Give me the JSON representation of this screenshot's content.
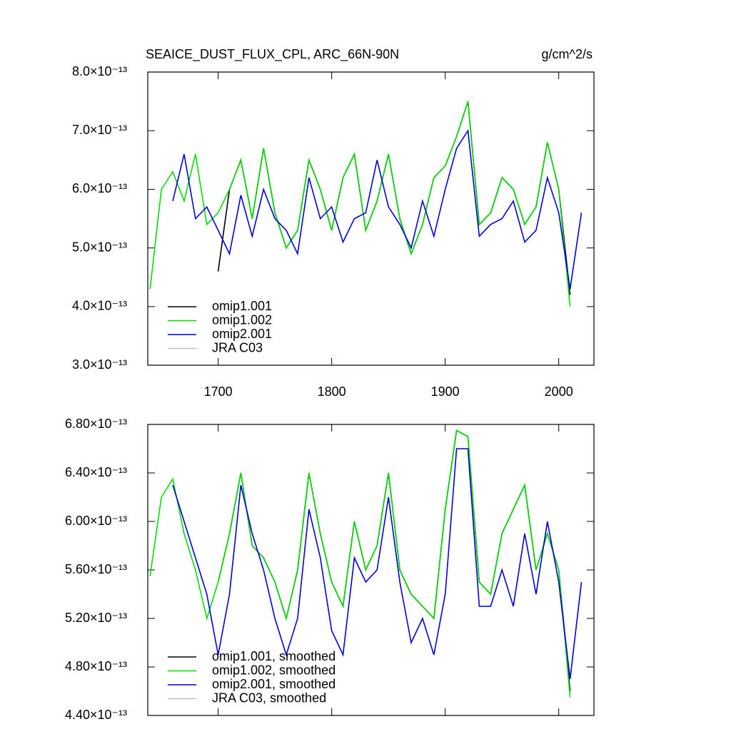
{
  "chart_data": [
    {
      "type": "line",
      "title": "SEAICE_DUST_FLUX_CPL, ARC_66N-90N",
      "units": "g/cm^2/s",
      "x": [
        1640,
        1650,
        1660,
        1670,
        1680,
        1690,
        1700,
        1710,
        1720,
        1730,
        1740,
        1750,
        1760,
        1770,
        1780,
        1790,
        1800,
        1810,
        1820,
        1830,
        1840,
        1850,
        1860,
        1870,
        1880,
        1890,
        1900,
        1910,
        1920,
        1930,
        1940,
        1950,
        1960,
        1970,
        1980,
        1990,
        2000,
        2010,
        2020
      ],
      "xlim": [
        1638,
        2031
      ],
      "xticks": [
        1700,
        1800,
        1900,
        2000
      ],
      "xtick_labels": true,
      "ylim": [
        3e-13,
        8e-13
      ],
      "yticks": [
        {
          "value": 3e-13,
          "label": "3.0×10⁻¹³"
        },
        {
          "value": 4e-13,
          "label": "4.0×10⁻¹³"
        },
        {
          "value": 5e-13,
          "label": "5.0×10⁻¹³"
        },
        {
          "value": 6e-13,
          "label": "6.0×10⁻¹³"
        },
        {
          "value": 7e-13,
          "label": "7.0×10⁻¹³"
        },
        {
          "value": 8e-13,
          "label": "8.0×10⁻¹³"
        }
      ],
      "legend": "lower-left",
      "series": [
        {
          "name": "omip1.001",
          "color": "#000000",
          "values": [
            null,
            null,
            null,
            null,
            null,
            null,
            4.6e-13,
            6e-13,
            6.5e-13,
            5.5e-13,
            6.7e-13,
            5.6e-13,
            5e-13,
            5.3e-13,
            6.5e-13,
            6e-13,
            5.3e-13,
            6.2e-13,
            6.6e-13,
            5.3e-13,
            5.8e-13,
            6.6e-13,
            5.5e-13,
            4.9e-13,
            5.4e-13,
            6.2e-13,
            6.4e-13,
            6.9e-13,
            7.5e-13,
            5.4e-13,
            5.6e-13,
            6.2e-13,
            6e-13,
            5.4e-13,
            5.7e-13,
            6.8e-13,
            6e-13,
            4.2e-13,
            null
          ]
        },
        {
          "name": "omip1.002",
          "color": "#00e000",
          "values": [
            4.3e-13,
            6e-13,
            6.3e-13,
            5.8e-13,
            6.6e-13,
            5.4e-13,
            5.6e-13,
            6e-13,
            6.5e-13,
            5.5e-13,
            6.7e-13,
            5.6e-13,
            5e-13,
            5.3e-13,
            6.5e-13,
            6e-13,
            5.3e-13,
            6.2e-13,
            6.6e-13,
            5.3e-13,
            5.8e-13,
            6.6e-13,
            5.5e-13,
            4.9e-13,
            5.4e-13,
            6.2e-13,
            6.4e-13,
            6.9e-13,
            7.5e-13,
            5.4e-13,
            5.6e-13,
            6.2e-13,
            6e-13,
            5.4e-13,
            5.7e-13,
            6.8e-13,
            6e-13,
            4e-13,
            null
          ]
        },
        {
          "name": "omip2.001",
          "color": "#0000e0",
          "values": [
            null,
            null,
            5.8e-13,
            6.6e-13,
            5.5e-13,
            5.7e-13,
            5.3e-13,
            4.9e-13,
            5.9e-13,
            5.2e-13,
            6e-13,
            5.5e-13,
            5.3e-13,
            4.9e-13,
            6.2e-13,
            5.5e-13,
            5.7e-13,
            5.1e-13,
            5.5e-13,
            5.6e-13,
            6.5e-13,
            5.7e-13,
            5.4e-13,
            5e-13,
            5.8e-13,
            5.2e-13,
            6e-13,
            6.7e-13,
            7e-13,
            5.2e-13,
            5.4e-13,
            5.5e-13,
            5.8e-13,
            5.1e-13,
            5.3e-13,
            6.2e-13,
            5.6e-13,
            4.3e-13,
            5.6e-13
          ]
        },
        {
          "name": "JRA C03",
          "color": "#c0c0c0",
          "values": [
            null,
            null,
            null,
            null,
            null,
            null,
            null,
            null,
            null,
            null,
            null,
            null,
            null,
            null,
            null,
            null,
            null,
            null,
            null,
            null,
            null,
            null,
            null,
            null,
            null,
            null,
            null,
            null,
            null,
            null,
            null,
            null,
            null,
            null,
            null,
            null,
            null,
            null,
            null
          ]
        }
      ]
    },
    {
      "type": "line",
      "x": [
        1640,
        1650,
        1660,
        1670,
        1680,
        1690,
        1700,
        1710,
        1720,
        1730,
        1740,
        1750,
        1760,
        1770,
        1780,
        1790,
        1800,
        1810,
        1820,
        1830,
        1840,
        1850,
        1860,
        1870,
        1880,
        1890,
        1900,
        1910,
        1920,
        1930,
        1940,
        1950,
        1960,
        1970,
        1980,
        1990,
        2000,
        2010,
        2020
      ],
      "xlim": [
        1638,
        2031
      ],
      "xticks": [
        1700,
        1800,
        1900,
        2000
      ],
      "xtick_labels": false,
      "ylim": [
        4.4e-13,
        6.8e-13
      ],
      "yticks": [
        {
          "value": 4.4e-13,
          "label": "4.40×10⁻¹³"
        },
        {
          "value": 4.8e-13,
          "label": "4.80×10⁻¹³"
        },
        {
          "value": 5.2e-13,
          "label": "5.20×10⁻¹³"
        },
        {
          "value": 5.6e-13,
          "label": "5.60×10⁻¹³"
        },
        {
          "value": 6e-13,
          "label": "6.00×10⁻¹³"
        },
        {
          "value": 6.4e-13,
          "label": "6.40×10⁻¹³"
        },
        {
          "value": 6.8e-13,
          "label": "6.80×10⁻¹³"
        }
      ],
      "legend": "lower-left",
      "series": [
        {
          "name": "omip1.001, smoothed",
          "color": "#000000",
          "values": [
            null,
            null,
            null,
            null,
            null,
            null,
            5.5e-13,
            5.9e-13,
            6.4e-13,
            5.8e-13,
            5.7e-13,
            5.5e-13,
            5.2e-13,
            5.6e-13,
            6.4e-13,
            5.9e-13,
            5.5e-13,
            5.3e-13,
            6e-13,
            5.6e-13,
            5.8e-13,
            6.4e-13,
            5.6e-13,
            5.4e-13,
            5.3e-13,
            5.2e-13,
            6.1e-13,
            6.75e-13,
            6.7e-13,
            5.5e-13,
            5.4e-13,
            5.9e-13,
            6.1e-13,
            6.3e-13,
            5.6e-13,
            5.9e-13,
            5.6e-13,
            4.6e-13,
            null
          ]
        },
        {
          "name": "omip1.002, smoothed",
          "color": "#00e000",
          "values": [
            5.55e-13,
            6.2e-13,
            6.35e-13,
            5.9e-13,
            5.6e-13,
            5.2e-13,
            5.5e-13,
            5.9e-13,
            6.4e-13,
            5.8e-13,
            5.7e-13,
            5.5e-13,
            5.2e-13,
            5.6e-13,
            6.4e-13,
            5.9e-13,
            5.5e-13,
            5.3e-13,
            6e-13,
            5.6e-13,
            5.8e-13,
            6.4e-13,
            5.6e-13,
            5.4e-13,
            5.3e-13,
            5.2e-13,
            6.1e-13,
            6.75e-13,
            6.7e-13,
            5.5e-13,
            5.4e-13,
            5.9e-13,
            6.1e-13,
            6.3e-13,
            5.6e-13,
            5.9e-13,
            5.6e-13,
            4.55e-13,
            null
          ]
        },
        {
          "name": "omip2.001, smoothed",
          "color": "#0000e0",
          "values": [
            null,
            null,
            6.3e-13,
            6e-13,
            5.7e-13,
            5.4e-13,
            4.9e-13,
            5.4e-13,
            6.3e-13,
            5.9e-13,
            5.6e-13,
            5.2e-13,
            4.9e-13,
            5.2e-13,
            6.1e-13,
            5.7e-13,
            5.1e-13,
            4.9e-13,
            5.7e-13,
            5.5e-13,
            5.6e-13,
            6.2e-13,
            5.5e-13,
            5e-13,
            5.2e-13,
            4.9e-13,
            5.4e-13,
            6.6e-13,
            6.6e-13,
            5.3e-13,
            5.3e-13,
            5.6e-13,
            5.3e-13,
            5.9e-13,
            5.4e-13,
            6e-13,
            5.5e-13,
            4.7e-13,
            5.5e-13
          ]
        },
        {
          "name": "JRA C03, smoothed",
          "color": "#c0c0c0",
          "values": [
            null,
            null,
            null,
            null,
            null,
            null,
            null,
            null,
            null,
            null,
            null,
            null,
            null,
            null,
            null,
            null,
            null,
            null,
            null,
            null,
            null,
            null,
            null,
            null,
            null,
            null,
            null,
            null,
            null,
            null,
            null,
            null,
            null,
            null,
            null,
            null,
            null,
            null,
            null
          ]
        }
      ]
    }
  ]
}
